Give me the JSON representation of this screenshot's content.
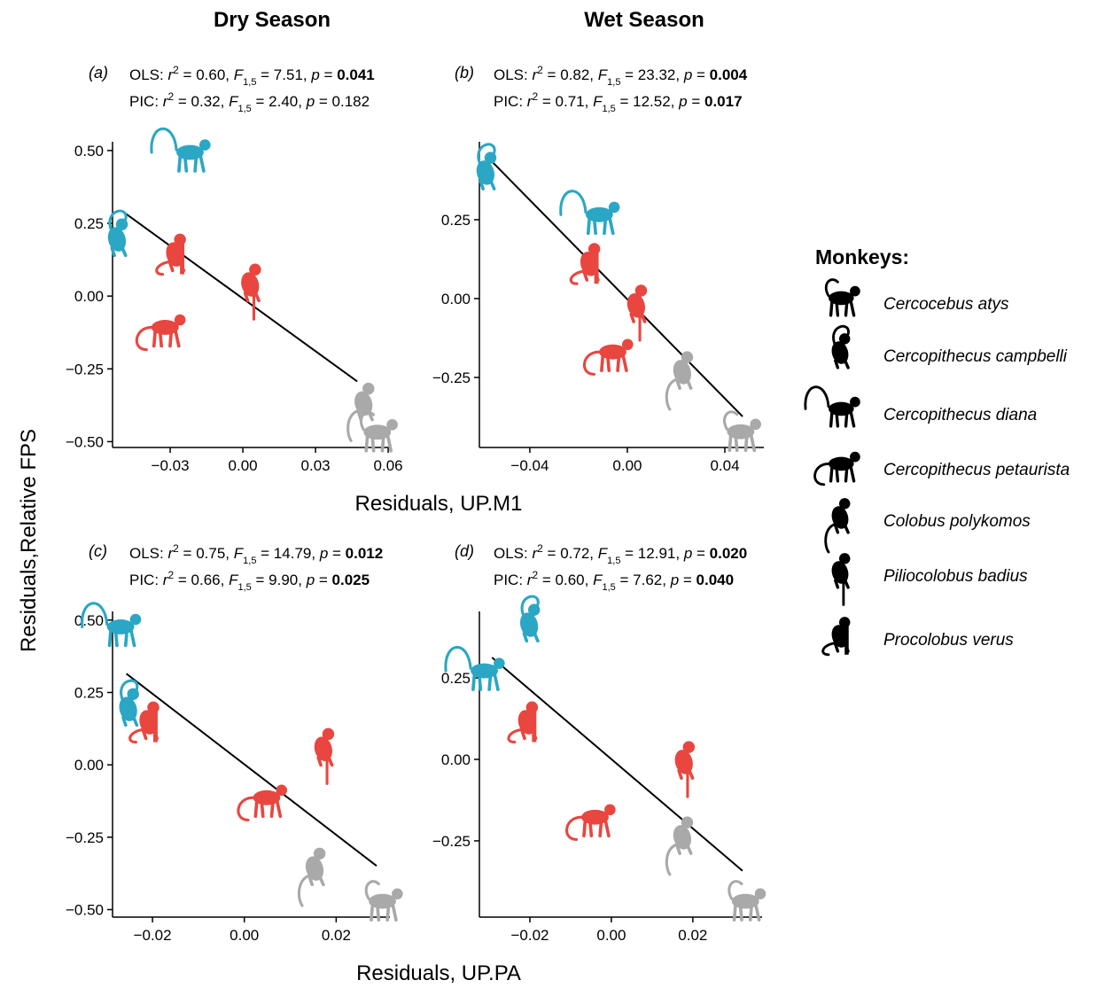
{
  "column_titles": [
    "Dry Season",
    "Wet Season"
  ],
  "y_label": "Residuals,Relative FPS",
  "x_labels": [
    "Residuals, UP.M1",
    "Residuals, UP.PA"
  ],
  "legend": {
    "title": "Monkeys:",
    "items": [
      "Cercocebus atys",
      "Cercopithecus campbelli",
      "Cercopithecus diana",
      "Cercopithecus petaurista",
      "Colobus polykomos",
      "Piliocolobus badius",
      "Procolobus verus"
    ]
  },
  "chart_data": [
    {
      "type": "scatter",
      "panel": "(a)",
      "stats": [
        [
          {
            "text": "OLS: "
          },
          {
            "text": "r",
            "style": "i"
          },
          {
            "text": "2",
            "style": "sup"
          },
          {
            "text": " = 0.60, "
          },
          {
            "text": "F",
            "style": "i"
          },
          {
            "text": "1,5",
            "style": "sub"
          },
          {
            "text": " = 7.51, "
          },
          {
            "text": "p",
            "style": "i"
          },
          {
            "text": " = "
          },
          {
            "text": "0.041",
            "style": "b"
          }
        ],
        [
          {
            "text": "PIC: "
          },
          {
            "text": "r",
            "style": "i"
          },
          {
            "text": "2",
            "style": "sup"
          },
          {
            "text": " = 0.32, "
          },
          {
            "text": "F",
            "style": "i"
          },
          {
            "text": "1,5",
            "style": "sub"
          },
          {
            "text": " = 2.40, "
          },
          {
            "text": "p",
            "style": "i"
          },
          {
            "text": " = "
          },
          {
            "text": "0.182"
          }
        ]
      ],
      "xlim": [
        -0.0538,
        0.0607
      ],
      "ylim": [
        -0.52,
        0.53
      ],
      "xticks": [
        {
          "value": -0.03,
          "label": "−0.03"
        },
        {
          "value": 0,
          "label": "0.00"
        },
        {
          "value": 0.03,
          "label": "0.03"
        },
        {
          "value": 0.06,
          "label": "0.06"
        }
      ],
      "yticks": [
        {
          "value": -0.5,
          "label": "−0.50"
        },
        {
          "value": -0.25,
          "label": "−0.25"
        },
        {
          "value": 0,
          "label": "0.00"
        },
        {
          "value": 0.25,
          "label": "0.25"
        },
        {
          "value": 0.5,
          "label": "0.50"
        }
      ],
      "fit": {
        "x": [
          -0.049,
          0.0472
        ],
        "y": [
          0.287,
          -0.293
        ]
      },
      "series": [
        {
          "color": "#a9a9a9",
          "x": [
            0.055
          ],
          "values": [
            -0.476
          ]
        },
        {
          "color": "#2ba6c4",
          "x": [
            -0.052
          ],
          "values": [
            0.195
          ]
        },
        {
          "color": "#2ba6c4",
          "x": [
            -0.0223
          ],
          "values": [
            0.485
          ]
        },
        {
          "color": "#e8463f",
          "x": [
            -0.0326
          ],
          "values": [
            -0.116
          ]
        },
        {
          "color": "#a9a9a9",
          "x": [
            0.0498
          ],
          "values": [
            -0.369
          ]
        },
        {
          "color": "#e8463f",
          "x": [
            0.003
          ],
          "values": [
            0.04
          ]
        },
        {
          "color": "#e8463f",
          "x": [
            -0.028
          ],
          "values": [
            0.143
          ]
        }
      ]
    },
    {
      "type": "scatter",
      "panel": "(b)",
      "stats": [
        [
          {
            "text": "OLS: "
          },
          {
            "text": "r",
            "style": "i"
          },
          {
            "text": "2",
            "style": "sup"
          },
          {
            "text": " = 0.82, "
          },
          {
            "text": "F",
            "style": "i"
          },
          {
            "text": "1,5",
            "style": "sub"
          },
          {
            "text": " = 23.32, "
          },
          {
            "text": "p",
            "style": "i"
          },
          {
            "text": " = "
          },
          {
            "text": "0.004",
            "style": "b"
          }
        ],
        [
          {
            "text": "PIC: "
          },
          {
            "text": "r",
            "style": "i"
          },
          {
            "text": "2",
            "style": "sup"
          },
          {
            "text": " = 0.71, "
          },
          {
            "text": "F",
            "style": "i"
          },
          {
            "text": "1,5",
            "style": "sub"
          },
          {
            "text": " = 12.52, "
          },
          {
            "text": "p",
            "style": "i"
          },
          {
            "text": " = "
          },
          {
            "text": "0.017",
            "style": "b"
          }
        ]
      ],
      "xlim": [
        -0.0607,
        0.056
      ],
      "ylim": [
        -0.472,
        0.497
      ],
      "xticks": [
        {
          "value": -0.04,
          "label": "−0.04"
        },
        {
          "value": 0,
          "label": "0.00"
        },
        {
          "value": 0.04,
          "label": "0.04"
        }
      ],
      "yticks": [
        {
          "value": -0.25,
          "label": "−0.25"
        },
        {
          "value": 0,
          "label": "0.00"
        },
        {
          "value": 0.25,
          "label": "0.25"
        }
      ],
      "fit": {
        "x": [
          -0.0564,
          0.0473
        ],
        "y": [
          0.441,
          -0.374
        ]
      },
      "series": [
        {
          "color": "#a9a9a9",
          "x": [
            0.046
          ],
          "values": [
            -0.43
          ]
        },
        {
          "color": "#2ba6c4",
          "x": [
            -0.0582
          ],
          "values": [
            0.399
          ]
        },
        {
          "color": "#2ba6c4",
          "x": [
            -0.012
          ],
          "values": [
            0.258
          ]
        },
        {
          "color": "#e8463f",
          "x": [
            -0.0065
          ],
          "values": [
            -0.177
          ]
        },
        {
          "color": "#a9a9a9",
          "x": [
            0.0225
          ],
          "values": [
            -0.233
          ]
        },
        {
          "color": "#e8463f",
          "x": [
            0.0036
          ],
          "values": [
            -0.022
          ]
        },
        {
          "color": "#e8463f",
          "x": [
            -0.0156
          ],
          "values": [
            0.11
          ]
        }
      ]
    },
    {
      "type": "scatter",
      "panel": "(c)",
      "stats": [
        [
          {
            "text": "OLS: "
          },
          {
            "text": "r",
            "style": "i"
          },
          {
            "text": "2",
            "style": "sup"
          },
          {
            "text": " = 0.75, "
          },
          {
            "text": "F",
            "style": "i"
          },
          {
            "text": "1,5",
            "style": "sub"
          },
          {
            "text": " = 14.79, "
          },
          {
            "text": "p",
            "style": "i"
          },
          {
            "text": " = "
          },
          {
            "text": "0.012",
            "style": "b"
          }
        ],
        [
          {
            "text": "PIC: "
          },
          {
            "text": "r",
            "style": "i"
          },
          {
            "text": "2",
            "style": "sup"
          },
          {
            "text": " = 0.66, "
          },
          {
            "text": "F",
            "style": "i"
          },
          {
            "text": "1,5",
            "style": "sub"
          },
          {
            "text": " = 9.90, "
          },
          {
            "text": "p",
            "style": "i"
          },
          {
            "text": " = "
          },
          {
            "text": "0.025",
            "style": "b"
          }
        ]
      ],
      "xlim": [
        -0.0287,
        0.0317
      ],
      "ylim": [
        -0.526,
        0.53
      ],
      "xticks": [
        {
          "value": -0.02,
          "label": "−0.02"
        },
        {
          "value": 0,
          "label": "0.00"
        },
        {
          "value": 0.02,
          "label": "0.02"
        }
      ],
      "yticks": [
        {
          "value": -0.5,
          "label": "−0.50"
        },
        {
          "value": -0.25,
          "label": "−0.25"
        },
        {
          "value": 0,
          "label": "0.00"
        },
        {
          "value": 0.25,
          "label": "0.25"
        },
        {
          "value": 0.5,
          "label": "0.50"
        }
      ],
      "fit": {
        "x": [
          -0.0257,
          0.0288
        ],
        "y": [
          0.315,
          -0.349
        ]
      },
      "series": [
        {
          "color": "#a9a9a9",
          "x": [
            0.0298
          ],
          "values": [
            -0.48
          ]
        },
        {
          "color": "#2ba6c4",
          "x": [
            -0.0253
          ],
          "values": [
            0.193
          ]
        },
        {
          "color": "#2ba6c4",
          "x": [
            -0.0272
          ],
          "values": [
            0.468
          ]
        },
        {
          "color": "#e8463f",
          "x": [
            0.0046
          ],
          "values": [
            -0.122
          ]
        },
        {
          "color": "#a9a9a9",
          "x": [
            0.0153
          ],
          "values": [
            -0.358
          ]
        },
        {
          "color": "#e8463f",
          "x": [
            0.0172
          ],
          "values": [
            0.055
          ]
        },
        {
          "color": "#e8463f",
          "x": [
            -0.0209
          ],
          "values": [
            0.147
          ]
        }
      ]
    },
    {
      "type": "scatter",
      "panel": "(d)",
      "stats": [
        [
          {
            "text": "OLS: "
          },
          {
            "text": "r",
            "style": "i"
          },
          {
            "text": "2",
            "style": "sup"
          },
          {
            "text": " = 0.72, "
          },
          {
            "text": "F",
            "style": "i"
          },
          {
            "text": "1,5",
            "style": "sub"
          },
          {
            "text": " = 12.91, "
          },
          {
            "text": "p",
            "style": "i"
          },
          {
            "text": " = "
          },
          {
            "text": "0.020",
            "style": "b"
          }
        ],
        [
          {
            "text": "PIC: "
          },
          {
            "text": "r",
            "style": "i"
          },
          {
            "text": "2",
            "style": "sup"
          },
          {
            "text": " = 0.60, "
          },
          {
            "text": "F",
            "style": "i"
          },
          {
            "text": "1,5",
            "style": "sub"
          },
          {
            "text": " = 7.62, "
          },
          {
            "text": "p",
            "style": "i"
          },
          {
            "text": " = "
          },
          {
            "text": "0.040",
            "style": "b"
          }
        ]
      ],
      "xlim": [
        -0.0324,
        0.037
      ],
      "ylim": [
        -0.484,
        0.454
      ],
      "xticks": [
        {
          "value": -0.02,
          "label": "−0.02"
        },
        {
          "value": 0,
          "label": "0.00"
        },
        {
          "value": 0.02,
          "label": "0.02"
        }
      ],
      "yticks": [
        {
          "value": -0.25,
          "label": "−0.25"
        },
        {
          "value": 0,
          "label": "0.00"
        },
        {
          "value": 0.25,
          "label": "0.25"
        }
      ],
      "fit": {
        "x": [
          -0.0293,
          0.0322
        ],
        "y": [
          0.3125,
          -0.342
        ]
      },
      "series": [
        {
          "color": "#a9a9a9",
          "x": [
            0.0326
          ],
          "values": [
            -0.443
          ]
        },
        {
          "color": "#2ba6c4",
          "x": [
            -0.0202
          ],
          "values": [
            0.413
          ]
        },
        {
          "color": "#2ba6c4",
          "x": [
            -0.0315
          ],
          "values": [
            0.264
          ]
        },
        {
          "color": "#e8463f",
          "x": [
            -0.0043
          ],
          "values": [
            -0.185
          ]
        },
        {
          "color": "#a9a9a9",
          "x": [
            0.0174
          ],
          "values": [
            -0.239
          ]
        },
        {
          "color": "#e8463f",
          "x": [
            0.0178
          ],
          "values": [
            -0.008
          ]
        },
        {
          "color": "#e8463f",
          "x": [
            -0.0207
          ],
          "values": [
            0.114
          ]
        }
      ]
    }
  ]
}
